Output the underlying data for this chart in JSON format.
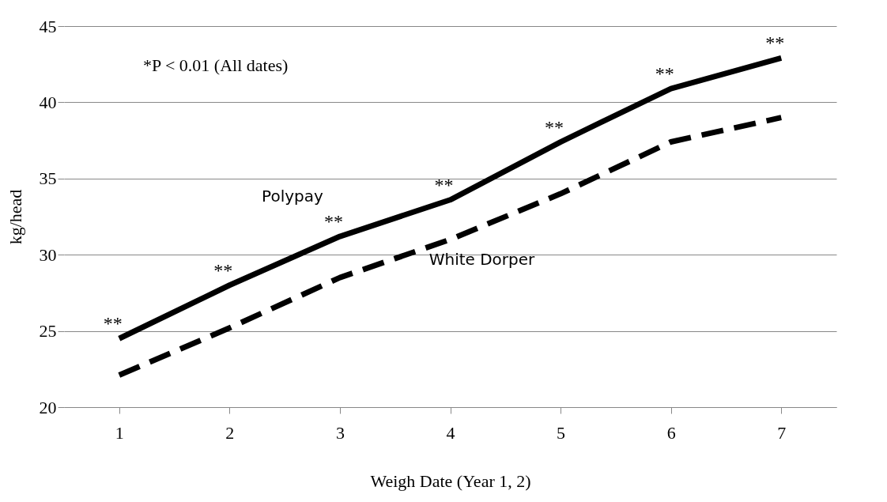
{
  "chart_data": {
    "type": "line",
    "xlabel": "Weigh Date (Year 1, 2)",
    "ylabel": "kg/head",
    "categories": [
      "1",
      "2",
      "3",
      "4",
      "5",
      "6",
      "7"
    ],
    "series": [
      {
        "name": "Polypay",
        "color": "#000000",
        "line_style": "solid",
        "values": [
          24.5,
          28.0,
          31.2,
          33.6,
          37.4,
          40.9,
          42.9
        ]
      },
      {
        "name": "White Dorper",
        "color": "#000000",
        "line_style": "dashed",
        "values": [
          22.1,
          25.2,
          28.5,
          31.0,
          34.0,
          37.4,
          39.0
        ]
      }
    ],
    "ylim": [
      20,
      45
    ],
    "yticks": [
      20,
      25,
      30,
      35,
      40,
      45
    ],
    "grid": "y",
    "legend": false,
    "marker": "none",
    "annotations": [
      "*P < 0.01 (All dates)",
      {
        "text": "**",
        "x": "1",
        "y": 24.5
      },
      {
        "text": "**",
        "x": "2",
        "y": 28.0
      },
      {
        "text": "**",
        "x": "3",
        "y": 31.2
      },
      {
        "text": "**",
        "x": "4",
        "y": 33.6
      },
      {
        "text": "**",
        "x": "5",
        "y": 37.4
      },
      {
        "text": "**",
        "x": "6",
        "y": 40.9
      },
      {
        "text": "**",
        "x": "7",
        "y": 42.9
      }
    ]
  }
}
